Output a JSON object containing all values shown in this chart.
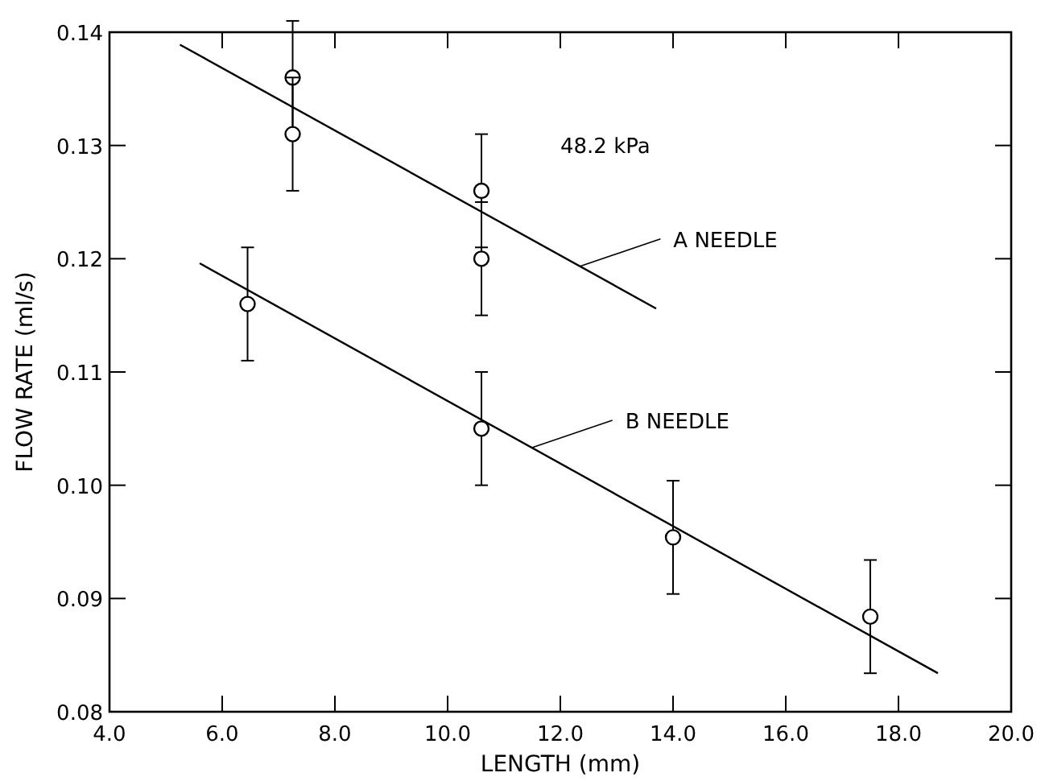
{
  "chart_data": {
    "type": "scatter",
    "xlabel": "LENGTH (mm)",
    "ylabel": "FLOW RATE (ml/s)",
    "xlim": [
      4,
      20
    ],
    "ylim": [
      0.08,
      0.14
    ],
    "xticks": [
      {
        "value": 4,
        "label": "4.0"
      },
      {
        "value": 6,
        "label": "6.0"
      },
      {
        "value": 8,
        "label": "8.0"
      },
      {
        "value": 10,
        "label": "10.0"
      },
      {
        "value": 12,
        "label": "12.0"
      },
      {
        "value": 14,
        "label": "14.0"
      },
      {
        "value": 16,
        "label": "16.0"
      },
      {
        "value": 18,
        "label": "18.0"
      },
      {
        "value": 20,
        "label": "20.0"
      }
    ],
    "yticks": [
      {
        "value": 0.08,
        "label": "0.08"
      },
      {
        "value": 0.09,
        "label": "0.09"
      },
      {
        "value": 0.1,
        "label": "0.10"
      },
      {
        "value": 0.11,
        "label": "0.11"
      },
      {
        "value": 0.12,
        "label": "0.12"
      },
      {
        "value": 0.13,
        "label": "0.13"
      },
      {
        "value": 0.14,
        "label": "0.14"
      }
    ],
    "grid": false,
    "legend": "center",
    "annotations": [
      "48.2 kPa"
    ],
    "series": [
      {
        "color": "#000000",
        "marker": "circle",
        "x": [
          7.25,
          7.25,
          10.6,
          10.6
        ],
        "values": [
          0.136,
          0.131,
          0.126,
          0.12
        ],
        "errors": [
          0.005,
          0.005,
          0.005,
          0.005
        ]
      },
      {
        "color": "#000000",
        "marker": "circle",
        "x": [
          6.45,
          10.6,
          14.0,
          17.5
        ],
        "values": [
          0.116,
          0.105,
          0.0954,
          0.0884
        ],
        "errors": [
          0.005,
          0.005,
          0.005,
          0.005
        ]
      },
      {
        "type": "line",
        "name": "A NEEDLE",
        "marker": "none",
        "color": "#000000",
        "x": [
          5.25,
          13.7
        ],
        "values": [
          0.1389,
          0.1156
        ]
      },
      {
        "type": "line",
        "name": "B NEEDLE",
        "marker": "none",
        "color": "#000000",
        "x": [
          5.6,
          18.7
        ],
        "values": [
          0.1196,
          0.0834
        ]
      }
    ]
  }
}
